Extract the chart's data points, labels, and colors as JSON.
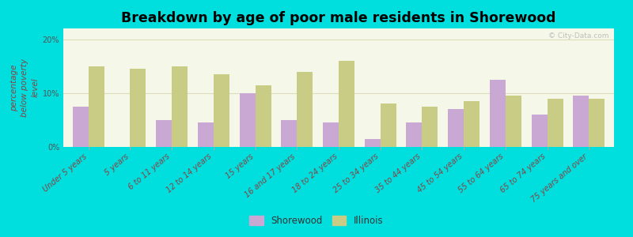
{
  "categories": [
    "Under 5 years",
    "5 years",
    "6 to 11 years",
    "12 to 14 years",
    "15 years",
    "16 and 17 years",
    "18 to 24 years",
    "25 to 34 years",
    "35 to 44 years",
    "45 to 54 years",
    "55 to 64 years",
    "65 to 74 years",
    "75 years and over"
  ],
  "shorewood": [
    7.5,
    0,
    5.0,
    4.5,
    10.0,
    5.0,
    4.5,
    1.5,
    4.5,
    7.0,
    12.5,
    6.0,
    9.5
  ],
  "illinois": [
    15.0,
    14.5,
    15.0,
    13.5,
    11.5,
    14.0,
    16.0,
    8.0,
    7.5,
    8.5,
    9.5,
    9.0,
    9.0
  ],
  "shorewood_color": "#c9a8d4",
  "illinois_color": "#c8cc85",
  "title": "Breakdown by age of poor male residents in Shorewood",
  "ylabel": "percentage\nbelow poverty\nlevel",
  "ylim": [
    0,
    22
  ],
  "yticks": [
    0,
    10,
    20
  ],
  "ytick_labels": [
    "0%",
    "10%",
    "20%"
  ],
  "plot_bg_top": "#f5f8e8",
  "plot_bg_bottom": "#d8f0d8",
  "outer_background": "#00dede",
  "grid_color": "#ddddbb",
  "bar_width": 0.38,
  "title_fontsize": 12.5,
  "axis_label_fontsize": 7.5,
  "tick_fontsize": 7.0,
  "legend_fontsize": 8.5
}
